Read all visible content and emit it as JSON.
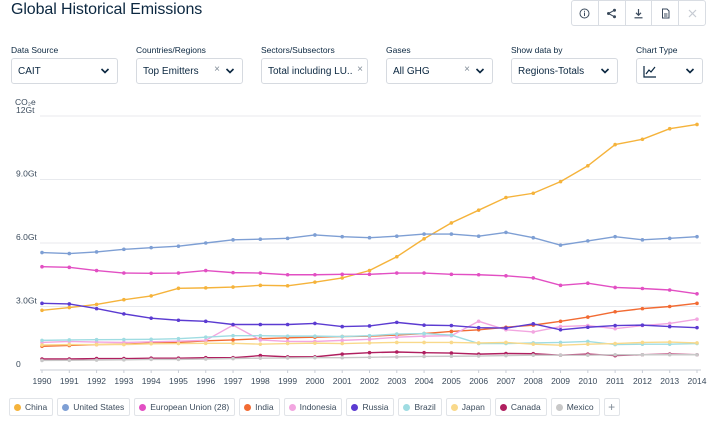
{
  "page": {
    "title": "Global Historical Emissions"
  },
  "toolbar": {
    "buttons": [
      "info-icon",
      "share-icon",
      "download-icon",
      "pdf-icon",
      "embed-icon"
    ]
  },
  "filters": [
    {
      "label": "Data Source",
      "value": "CAIT",
      "clearable": false
    },
    {
      "label": "Countries/Regions",
      "value": "Top Emitters",
      "clearable": true
    },
    {
      "label": "Sectors/Subsectors",
      "value": "Total including LU...",
      "clearable": true
    },
    {
      "label": "Gases",
      "value": "All GHG",
      "clearable": true
    },
    {
      "label": "Show data by",
      "value": "Regions-Totals",
      "clearable": false
    },
    {
      "label": "Chart Type",
      "value": "",
      "icon": "line-chart-icon",
      "clearable": false
    }
  ],
  "chart_data": {
    "type": "line",
    "unit_label": "CO₂e",
    "ylim": [
      0,
      12
    ],
    "y_ticks": [
      0,
      3,
      6,
      9,
      12
    ],
    "y_tick_labels": [
      "0",
      "3.0Gt",
      "6.0Gt",
      "9.0Gt",
      "12Gt"
    ],
    "x": [
      1990,
      1991,
      1992,
      1993,
      1994,
      1995,
      1996,
      1997,
      1998,
      1999,
      2000,
      2001,
      2002,
      2003,
      2004,
      2005,
      2006,
      2007,
      2008,
      2009,
      2010,
      2011,
      2012,
      2013,
      2014
    ],
    "grid": true,
    "legend_placement": "bottom",
    "series": [
      {
        "name": "China",
        "color": "#f5b33b",
        "values": [
          2.82,
          2.95,
          3.1,
          3.32,
          3.5,
          3.86,
          3.88,
          3.92,
          4.0,
          3.98,
          4.15,
          4.35,
          4.7,
          5.35,
          6.2,
          6.95,
          7.55,
          8.15,
          8.35,
          8.9,
          9.65,
          10.65,
          10.9,
          11.4,
          11.6
        ]
      },
      {
        "name": "United States",
        "color": "#7e9fd4",
        "values": [
          5.55,
          5.5,
          5.58,
          5.7,
          5.78,
          5.85,
          6.0,
          6.15,
          6.18,
          6.22,
          6.38,
          6.3,
          6.25,
          6.32,
          6.42,
          6.42,
          6.32,
          6.5,
          6.25,
          5.9,
          6.1,
          6.3,
          6.15,
          6.22,
          6.3
        ]
      },
      {
        "name": "European Union (28)",
        "color": "#e24fc3",
        "values": [
          4.88,
          4.85,
          4.7,
          4.58,
          4.57,
          4.58,
          4.7,
          4.6,
          4.58,
          4.5,
          4.5,
          4.52,
          4.52,
          4.58,
          4.58,
          4.52,
          4.5,
          4.45,
          4.35,
          4.0,
          4.1,
          3.9,
          3.85,
          3.78,
          3.6
        ]
      },
      {
        "name": "India",
        "color": "#f26b33",
        "values": [
          1.12,
          1.16,
          1.2,
          1.22,
          1.28,
          1.3,
          1.38,
          1.42,
          1.48,
          1.52,
          1.55,
          1.58,
          1.6,
          1.65,
          1.72,
          1.82,
          1.9,
          2.02,
          2.12,
          2.3,
          2.5,
          2.75,
          2.9,
          3.0,
          3.15
        ]
      },
      {
        "name": "Indonesia",
        "color": "#f2a6e0",
        "values": [
          1.3,
          1.35,
          1.32,
          1.3,
          1.33,
          1.36,
          1.4,
          2.12,
          1.42,
          1.35,
          1.35,
          1.4,
          1.45,
          1.55,
          1.6,
          1.62,
          2.3,
          1.9,
          1.8,
          2.05,
          2.1,
          1.95,
          2.1,
          2.2,
          2.4
        ]
      },
      {
        "name": "Russia",
        "color": "#5b3bd1",
        "values": [
          3.15,
          3.12,
          2.9,
          2.65,
          2.45,
          2.35,
          2.3,
          2.15,
          2.15,
          2.15,
          2.2,
          2.05,
          2.08,
          2.25,
          2.12,
          2.1,
          2.0,
          1.98,
          2.18,
          1.9,
          2.02,
          2.1,
          2.12,
          2.05,
          2.0
        ]
      },
      {
        "name": "Brazil",
        "color": "#9fdce2",
        "values": [
          1.4,
          1.42,
          1.43,
          1.44,
          1.45,
          1.48,
          1.55,
          1.62,
          1.62,
          1.6,
          1.6,
          1.58,
          1.62,
          1.7,
          1.72,
          1.65,
          1.25,
          1.25,
          1.28,
          1.3,
          1.35,
          1.2,
          1.22,
          1.22,
          1.25
        ]
      },
      {
        "name": "Japan",
        "color": "#f9d98b",
        "values": [
          1.18,
          1.2,
          1.2,
          1.2,
          1.24,
          1.25,
          1.26,
          1.26,
          1.22,
          1.25,
          1.27,
          1.25,
          1.28,
          1.3,
          1.3,
          1.3,
          1.28,
          1.3,
          1.22,
          1.17,
          1.22,
          1.25,
          1.3,
          1.32,
          1.28
        ]
      },
      {
        "name": "Canada",
        "color": "#b01f5f",
        "values": [
          0.52,
          0.52,
          0.54,
          0.54,
          0.56,
          0.56,
          0.58,
          0.58,
          0.68,
          0.62,
          0.62,
          0.75,
          0.82,
          0.85,
          0.82,
          0.8,
          0.75,
          0.78,
          0.77,
          0.7,
          0.75,
          0.68,
          0.72,
          0.75,
          0.72
        ]
      },
      {
        "name": "Mexico",
        "color": "#c8c8c8",
        "values": [
          0.45,
          0.46,
          0.47,
          0.48,
          0.5,
          0.5,
          0.52,
          0.54,
          0.56,
          0.57,
          0.58,
          0.58,
          0.6,
          0.62,
          0.64,
          0.65,
          0.66,
          0.68,
          0.7,
          0.7,
          0.7,
          0.72,
          0.72,
          0.72,
          0.72
        ]
      }
    ]
  },
  "legend": {
    "add_label": "+"
  }
}
